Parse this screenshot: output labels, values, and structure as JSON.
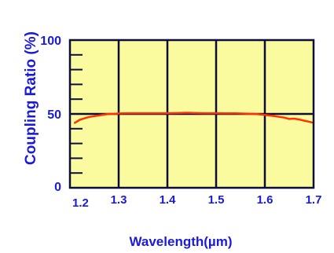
{
  "chart_data": {
    "type": "line",
    "title": "",
    "xlabel": "Wavelength(µm)",
    "ylabel": "Coupling Ratio (%)",
    "xlim": [
      1.2,
      1.7
    ],
    "ylim": [
      0,
      100
    ],
    "x_ticks": [
      "1.2",
      "1.3",
      "1.4",
      "1.5",
      "1.6",
      "1.7"
    ],
    "y_ticks": [
      "0",
      "50",
      "100"
    ],
    "grid": true,
    "legend": "none",
    "colors": {
      "plot_bg": "#fafa9e",
      "grid": "#0d0d3a",
      "line": "#ff3300",
      "label": "#1a1adc"
    },
    "series": [
      {
        "x": [
          1.21,
          1.22,
          1.23,
          1.24,
          1.25,
          1.26,
          1.27,
          1.28,
          1.29,
          1.3,
          1.32,
          1.35,
          1.38,
          1.4,
          1.42,
          1.44,
          1.46,
          1.48,
          1.5,
          1.52,
          1.54,
          1.56,
          1.58,
          1.6,
          1.62,
          1.64,
          1.65,
          1.66,
          1.67,
          1.68,
          1.69,
          1.7
        ],
        "y": [
          44,
          46,
          47,
          48,
          48.5,
          49,
          49.5,
          50,
          50,
          50.3,
          50.5,
          50.5,
          50.5,
          50.5,
          50.6,
          50.8,
          50.6,
          50.5,
          50.5,
          50.4,
          50.4,
          50.2,
          50,
          49.3,
          48.5,
          47.5,
          46.6,
          46.8,
          46.3,
          45.5,
          44.8,
          44
        ]
      }
    ]
  }
}
